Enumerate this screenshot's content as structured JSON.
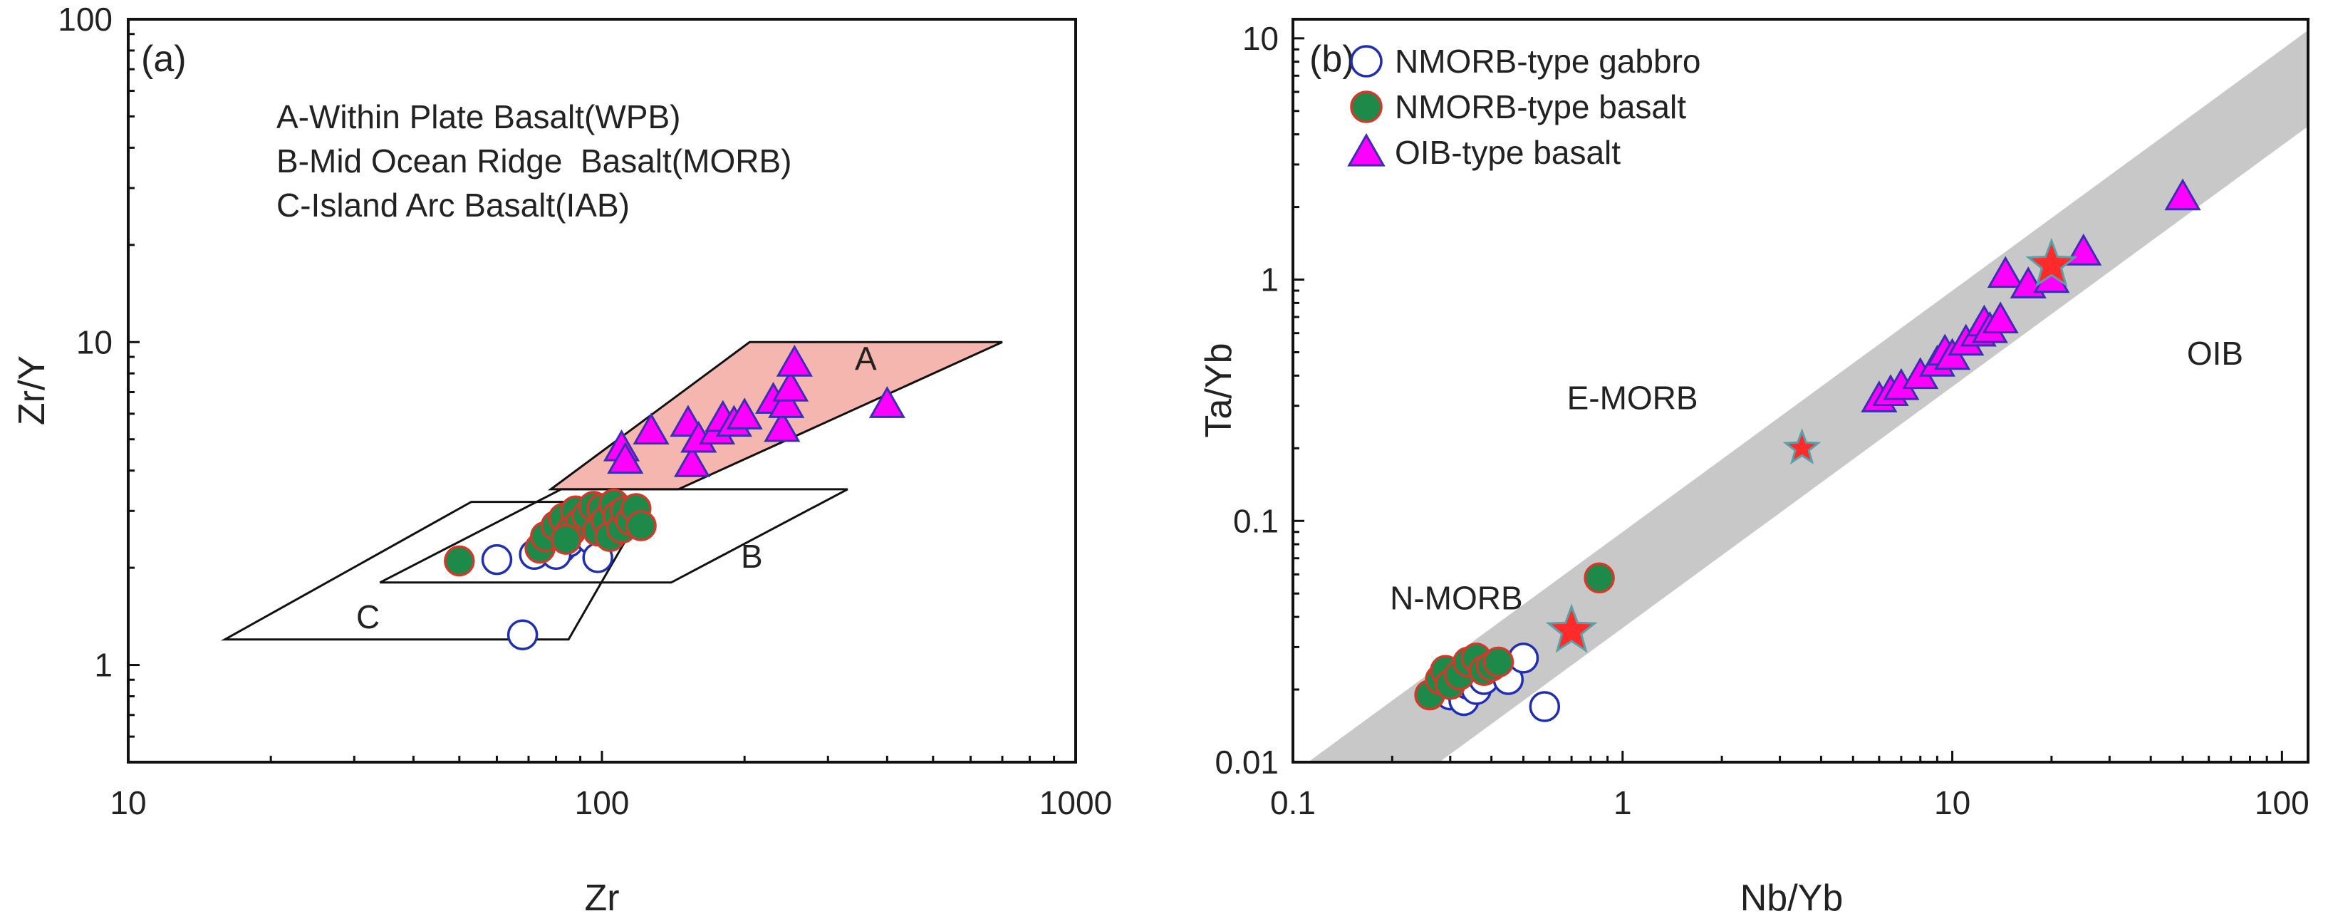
{
  "chart_data": [
    {
      "type": "scatter",
      "panel_label": "(a)",
      "xlabel": "Zr",
      "ylabel": "Zr/Y",
      "x_scale": "log",
      "y_scale": "log",
      "xlim": [
        10,
        1000
      ],
      "ylim": [
        0.5,
        100
      ],
      "x_ticks": [
        10,
        100,
        1000
      ],
      "x_tick_labels": [
        "10",
        "100",
        "1000"
      ],
      "y_ticks": [
        1,
        10,
        100
      ],
      "y_tick_labels": [
        "1",
        "10",
        "100"
      ],
      "legend_lines": [
        "A-Within Plate Basalt(WPB)",
        "B-Mid Ocean Ridge  Basalt(MORB)",
        "C-Island Arc Basalt(IAB)"
      ],
      "regions": [
        {
          "label": "A",
          "color": "#f6b6b0",
          "polygon": [
            [
              78,
              3.5
            ],
            [
              145,
              3.5
            ],
            [
              700,
              10
            ],
            [
              205,
              10
            ]
          ]
        },
        {
          "label": "B",
          "color": "none",
          "polygon": [
            [
              34,
              1.8
            ],
            [
              140,
              1.8
            ],
            [
              330,
              3.5
            ],
            [
              82,
              3.5
            ]
          ]
        },
        {
          "label": "C",
          "color": "none",
          "polygon": [
            [
              16,
              1.2
            ],
            [
              85,
              1.2
            ],
            [
              125,
              3.2
            ],
            [
              53,
              3.2
            ]
          ]
        }
      ],
      "series": [
        {
          "name": "NMORB-type gabbro",
          "marker": "open-circle",
          "color": "#1f2fb0",
          "points": [
            [
              60,
              2.12
            ],
            [
              68,
              1.24
            ],
            [
              72,
              2.2
            ],
            [
              75,
              2.35
            ],
            [
              78,
              2.5
            ],
            [
              82,
              2.3
            ],
            [
              85,
              2.4
            ],
            [
              88,
              2.55
            ],
            [
              90,
              2.6
            ],
            [
              95,
              2.45
            ],
            [
              98,
              2.15
            ],
            [
              80,
              2.2
            ]
          ]
        },
        {
          "name": "NMORB-type basalt",
          "marker": "filled-circle",
          "color": "#1e8a4a",
          "edge_color": "#d03a2a",
          "points": [
            [
              50,
              2.1
            ],
            [
              74,
              2.3
            ],
            [
              76,
              2.5
            ],
            [
              80,
              2.7
            ],
            [
              83,
              2.85
            ],
            [
              86,
              2.6
            ],
            [
              88,
              3.0
            ],
            [
              90,
              2.75
            ],
            [
              93,
              2.9
            ],
            [
              96,
              3.1
            ],
            [
              98,
              2.6
            ],
            [
              100,
              3.05
            ],
            [
              102,
              2.8
            ],
            [
              104,
              2.5
            ],
            [
              106,
              3.15
            ],
            [
              108,
              2.9
            ],
            [
              110,
              2.65
            ],
            [
              112,
              3.0
            ],
            [
              115,
              2.8
            ],
            [
              118,
              3.05
            ],
            [
              121,
              2.7
            ],
            [
              84,
              2.45
            ]
          ]
        },
        {
          "name": "OIB-type basalt",
          "marker": "triangle",
          "color": "#ff00ff",
          "edge_color": "#3a2fb0",
          "points": [
            [
              110,
              4.7
            ],
            [
              112,
              4.3
            ],
            [
              127,
              5.3
            ],
            [
              152,
              5.6
            ],
            [
              155,
              4.2
            ],
            [
              160,
              5.0
            ],
            [
              175,
              5.3
            ],
            [
              180,
              5.8
            ],
            [
              190,
              5.6
            ],
            [
              200,
              5.9
            ],
            [
              230,
              6.6
            ],
            [
              240,
              5.4
            ],
            [
              245,
              6.4
            ],
            [
              250,
              7.2
            ],
            [
              255,
              8.6
            ],
            [
              400,
              6.4
            ]
          ]
        }
      ]
    },
    {
      "type": "scatter",
      "panel_label": "(b)",
      "xlabel": "Nb/Yb",
      "ylabel": "Ta/Yb",
      "x_scale": "log",
      "y_scale": "log",
      "xlim": [
        0.1,
        120
      ],
      "ylim": [
        0.01,
        12
      ],
      "x_ticks": [
        0.1,
        1,
        10,
        100
      ],
      "x_tick_labels": [
        "0.1",
        "1",
        "10",
        "100"
      ],
      "y_ticks": [
        0.01,
        0.1,
        1,
        10
      ],
      "y_tick_labels": [
        "0.01",
        "0.1",
        "1",
        "10"
      ],
      "band": {
        "color": "#c8c8c8"
      },
      "reference_points": [
        {
          "label": "N-MORB",
          "x": 0.7,
          "y": 0.035
        },
        {
          "label": "E-MORB",
          "x": 3.5,
          "y": 0.2
        },
        {
          "label": "OIB",
          "x": 20,
          "y": 1.15
        }
      ],
      "legend": [
        {
          "name": "NMORB-type gabbro",
          "marker": "open-circle"
        },
        {
          "name": "NMORB-type basalt",
          "marker": "filled-circle"
        },
        {
          "name": "OIB-type basalt",
          "marker": "triangle"
        }
      ],
      "series": [
        {
          "name": "NMORB-type gabbro",
          "marker": "open-circle",
          "color": "#1f2fb0",
          "points": [
            [
              0.3,
              0.019
            ],
            [
              0.32,
              0.02
            ],
            [
              0.33,
              0.018
            ],
            [
              0.34,
              0.021
            ],
            [
              0.35,
              0.022
            ],
            [
              0.36,
              0.02
            ],
            [
              0.37,
              0.023
            ],
            [
              0.38,
              0.022
            ],
            [
              0.45,
              0.022
            ],
            [
              0.5,
              0.027
            ],
            [
              0.58,
              0.017
            ]
          ]
        },
        {
          "name": "NMORB-type basalt",
          "marker": "filled-circle",
          "color": "#1e8a4a",
          "edge_color": "#d03a2a",
          "points": [
            [
              0.26,
              0.019
            ],
            [
              0.28,
              0.022
            ],
            [
              0.29,
              0.024
            ],
            [
              0.3,
              0.021
            ],
            [
              0.32,
              0.023
            ],
            [
              0.34,
              0.026
            ],
            [
              0.36,
              0.027
            ],
            [
              0.38,
              0.024
            ],
            [
              0.4,
              0.025
            ],
            [
              0.42,
              0.026
            ],
            [
              0.85,
              0.058
            ]
          ]
        },
        {
          "name": "OIB-type basalt",
          "marker": "triangle",
          "color": "#ff00ff",
          "edge_color": "#3a2fb0",
          "points": [
            [
              6.0,
              0.32
            ],
            [
              6.5,
              0.34
            ],
            [
              7.0,
              0.36
            ],
            [
              8.0,
              0.4
            ],
            [
              9.0,
              0.45
            ],
            [
              9.5,
              0.5
            ],
            [
              10.0,
              0.48
            ],
            [
              11.0,
              0.55
            ],
            [
              12.0,
              0.6
            ],
            [
              12.5,
              0.66
            ],
            [
              13.0,
              0.62
            ],
            [
              14.0,
              0.68
            ],
            [
              14.5,
              1.05
            ],
            [
              17.0,
              0.95
            ],
            [
              20.0,
              1.0
            ],
            [
              25.0,
              1.3
            ],
            [
              50.0,
              2.2
            ]
          ]
        }
      ]
    }
  ]
}
